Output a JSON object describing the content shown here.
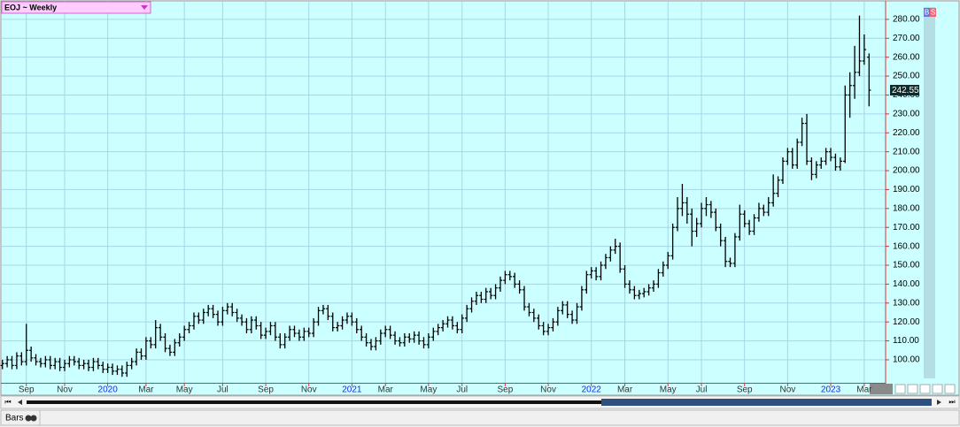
{
  "chart_data": {
    "type": "ohlc",
    "title": "EOJ ~ Weekly",
    "categories": [
      null,
      null,
      null,
      null,
      null,
      "Sep",
      null,
      null,
      null,
      null,
      null,
      null,
      null,
      "Nov",
      null,
      null,
      null,
      null,
      null,
      null,
      null,
      null,
      "2020",
      null,
      null,
      null,
      null,
      null,
      null,
      null,
      "Mar",
      null,
      null,
      null,
      null,
      null,
      null,
      null,
      "May",
      null,
      null,
      null,
      null,
      null,
      null,
      null,
      "Jul",
      null,
      null,
      null,
      null,
      null,
      null,
      null,
      null,
      "Sep",
      null,
      null,
      null,
      null,
      null,
      null,
      null,
      null,
      "Nov",
      null,
      null,
      null,
      null,
      null,
      null,
      null,
      null,
      "2021",
      null,
      null,
      null,
      null,
      null,
      null,
      "Mar",
      null,
      null,
      null,
      null,
      null,
      null,
      null,
      null,
      "May",
      null,
      null,
      null,
      null,
      null,
      null,
      "Jul",
      null,
      null,
      null,
      null,
      null,
      null,
      null,
      null,
      "Sep",
      null,
      null,
      null,
      null,
      null,
      null,
      null,
      null,
      "Nov",
      null,
      null,
      null,
      null,
      null,
      null,
      null,
      null,
      "2022",
      null,
      null,
      null,
      null,
      null,
      null,
      "Mar",
      null,
      null,
      null,
      null,
      null,
      null,
      null,
      null,
      "May",
      null,
      null,
      null,
      null,
      null,
      null,
      "Jul",
      null,
      null,
      null,
      null,
      null,
      null,
      null,
      null,
      "Sep",
      null,
      null,
      null,
      null,
      null,
      null,
      null,
      null,
      "Nov",
      null,
      null,
      null,
      null,
      null,
      null,
      null,
      null,
      "2023",
      null,
      null,
      null,
      null,
      null,
      null,
      "Mar",
      null
    ],
    "open": [
      97,
      98,
      100,
      97,
      102,
      99,
      105,
      101,
      99,
      98,
      100,
      97,
      99,
      96,
      98,
      100,
      99,
      97,
      98,
      96,
      99,
      97,
      95,
      96,
      94,
      95,
      93,
      97,
      99,
      104,
      102,
      110,
      108,
      117,
      112,
      106,
      104,
      109,
      112,
      116,
      118,
      123,
      121,
      125,
      127,
      124,
      120,
      126,
      128,
      125,
      122,
      120,
      116,
      121,
      118,
      113,
      115,
      118,
      112,
      108,
      112,
      116,
      114,
      112,
      115,
      114,
      120,
      126,
      127,
      123,
      117,
      118,
      121,
      123,
      120,
      116,
      112,
      109,
      107,
      110,
      114,
      116,
      113,
      110,
      109,
      112,
      111,
      113,
      110,
      108,
      112,
      115,
      117,
      119,
      121,
      118,
      116,
      122,
      127,
      131,
      134,
      132,
      136,
      134,
      138,
      142,
      145,
      144,
      140,
      137,
      128,
      125,
      122,
      118,
      115,
      117,
      120,
      126,
      129,
      124,
      121,
      128,
      137,
      145,
      147,
      144,
      150,
      154,
      158,
      160,
      148,
      140,
      137,
      134,
      135,
      136,
      138,
      140,
      146,
      150,
      155,
      170,
      180,
      183,
      177,
      168,
      172,
      180,
      182,
      178,
      170,
      163,
      152,
      151,
      165,
      177,
      172,
      168,
      175,
      180,
      178,
      183,
      188,
      195,
      205,
      210,
      203,
      215,
      225,
      205,
      198,
      203,
      205,
      210,
      207,
      202,
      205,
      240,
      245,
      252,
      258,
      260
    ],
    "high": [
      100,
      102,
      102,
      104,
      104,
      119,
      107,
      103,
      101,
      102,
      102,
      101,
      101,
      100,
      102,
      102,
      101,
      100,
      100,
      101,
      101,
      99,
      98,
      98,
      97,
      97,
      99,
      101,
      106,
      106,
      112,
      112,
      121,
      119,
      114,
      108,
      111,
      114,
      118,
      120,
      125,
      125,
      127,
      129,
      129,
      126,
      128,
      130,
      130,
      127,
      124,
      122,
      123,
      123,
      120,
      117,
      120,
      120,
      114,
      114,
      118,
      118,
      116,
      117,
      117,
      122,
      128,
      129,
      129,
      125,
      120,
      123,
      125,
      125,
      122,
      118,
      114,
      111,
      112,
      116,
      118,
      118,
      115,
      112,
      114,
      114,
      115,
      115,
      112,
      114,
      117,
      119,
      121,
      123,
      123,
      120,
      124,
      129,
      133,
      136,
      136,
      138,
      138,
      140,
      144,
      147,
      147,
      146,
      142,
      139,
      130,
      127,
      124,
      120,
      119,
      122,
      128,
      131,
      131,
      126,
      130,
      139,
      147,
      149,
      149,
      152,
      156,
      160,
      164,
      162,
      150,
      142,
      139,
      137,
      138,
      140,
      142,
      148,
      152,
      157,
      172,
      186,
      193,
      186,
      180,
      175,
      183,
      186,
      184,
      180,
      172,
      165,
      154,
      167,
      182,
      179,
      174,
      177,
      183,
      182,
      186,
      198,
      197,
      207,
      212,
      212,
      217,
      228,
      230,
      207,
      205,
      207,
      212,
      212,
      209,
      207,
      245,
      252,
      266,
      282,
      272,
      262
    ],
    "low": [
      95,
      96,
      95,
      95,
      97,
      97,
      99,
      97,
      96,
      96,
      95,
      95,
      94,
      94,
      96,
      97,
      95,
      95,
      94,
      94,
      95,
      93,
      93,
      92,
      92,
      91,
      91,
      95,
      97,
      100,
      100,
      106,
      106,
      110,
      104,
      102,
      102,
      107,
      110,
      114,
      116,
      119,
      119,
      123,
      122,
      118,
      118,
      124,
      123,
      120,
      118,
      114,
      114,
      116,
      111,
      111,
      113,
      110,
      106,
      106,
      110,
      112,
      110,
      110,
      112,
      112,
      118,
      124,
      121,
      115,
      115,
      116,
      119,
      118,
      114,
      110,
      107,
      105,
      105,
      108,
      112,
      111,
      108,
      107,
      107,
      109,
      109,
      108,
      106,
      106,
      110,
      113,
      115,
      117,
      116,
      114,
      114,
      120,
      125,
      129,
      130,
      130,
      132,
      132,
      136,
      140,
      142,
      138,
      135,
      126,
      123,
      120,
      116,
      113,
      113,
      115,
      118,
      124,
      122,
      119,
      119,
      126,
      135,
      143,
      142,
      142,
      148,
      152,
      156,
      146,
      138,
      135,
      132,
      132,
      133,
      134,
      136,
      138,
      144,
      148,
      153,
      168,
      176,
      172,
      160,
      165,
      170,
      176,
      175,
      168,
      160,
      149,
      149,
      149,
      163,
      170,
      166,
      166,
      173,
      176,
      176,
      181,
      186,
      193,
      203,
      201,
      201,
      213,
      203,
      195,
      196,
      201,
      203,
      205,
      200,
      200,
      204,
      228,
      238,
      250,
      256,
      234
    ],
    "close": [
      98,
      100,
      97,
      102,
      99,
      105,
      101,
      99,
      98,
      100,
      97,
      99,
      96,
      98,
      100,
      99,
      97,
      98,
      96,
      99,
      97,
      95,
      96,
      94,
      95,
      93,
      97,
      99,
      104,
      102,
      110,
      108,
      117,
      112,
      106,
      104,
      109,
      112,
      116,
      118,
      123,
      121,
      125,
      127,
      124,
      120,
      126,
      128,
      125,
      122,
      120,
      116,
      121,
      118,
      113,
      115,
      118,
      112,
      108,
      112,
      116,
      114,
      112,
      115,
      114,
      120,
      126,
      127,
      123,
      117,
      118,
      121,
      123,
      120,
      116,
      112,
      109,
      107,
      110,
      114,
      116,
      113,
      110,
      109,
      112,
      111,
      113,
      110,
      108,
      112,
      115,
      117,
      119,
      121,
      118,
      116,
      122,
      127,
      131,
      134,
      132,
      136,
      134,
      138,
      142,
      145,
      144,
      140,
      137,
      128,
      125,
      122,
      118,
      115,
      117,
      120,
      126,
      129,
      124,
      121,
      128,
      137,
      145,
      147,
      144,
      150,
      154,
      158,
      160,
      148,
      140,
      137,
      134,
      135,
      136,
      138,
      140,
      146,
      150,
      155,
      170,
      180,
      183,
      177,
      168,
      172,
      180,
      182,
      178,
      170,
      163,
      152,
      151,
      165,
      177,
      172,
      168,
      175,
      180,
      178,
      183,
      188,
      195,
      205,
      210,
      203,
      215,
      225,
      205,
      198,
      203,
      205,
      210,
      207,
      202,
      205,
      240,
      245,
      252,
      258,
      264,
      242.55
    ],
    "color": "#000000",
    "ylim": [
      88.3,
      289.3
    ],
    "yticks": [
      {
        "value": 100,
        "label": "100.00"
      },
      {
        "value": 110,
        "label": "110.00"
      },
      {
        "value": 120,
        "label": "120.00"
      },
      {
        "value": 130,
        "label": "130.00"
      },
      {
        "value": 140,
        "label": "140.00"
      },
      {
        "value": 150,
        "label": "150.00"
      },
      {
        "value": 160,
        "label": "160.00"
      },
      {
        "value": 170,
        "label": "170.00"
      },
      {
        "value": 180,
        "label": "180.00"
      },
      {
        "value": 190,
        "label": "190.00"
      },
      {
        "value": 200,
        "label": "200.00"
      },
      {
        "value": 210,
        "label": "210.00"
      },
      {
        "value": 220,
        "label": "220.00"
      },
      {
        "value": 230,
        "label": "230.00"
      },
      {
        "value": 240,
        "label": "240.00"
      },
      {
        "value": 250,
        "label": "250.00"
      },
      {
        "value": 260,
        "label": "260.00"
      },
      {
        "value": 270,
        "label": "270.00"
      },
      {
        "value": 280,
        "label": "280.00"
      }
    ],
    "grid": true
  },
  "top_buttons": [
    "B",
    "S"
  ],
  "status": "Bars"
}
